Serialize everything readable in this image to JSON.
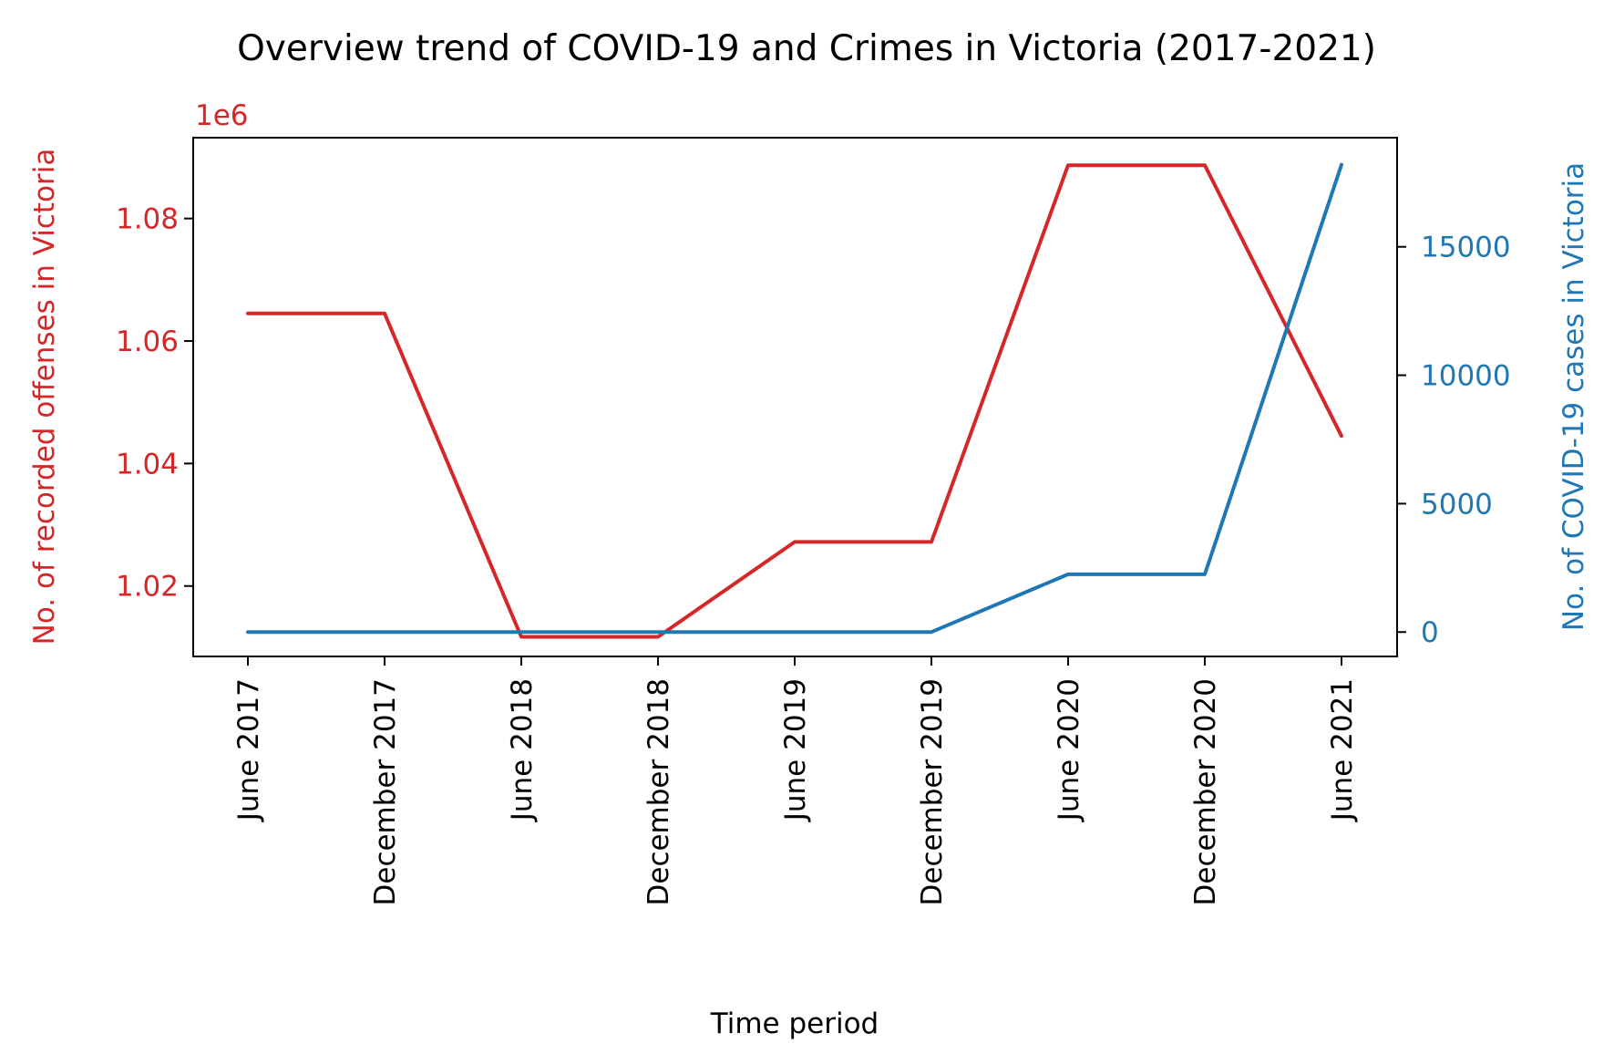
{
  "chart_data": {
    "type": "line",
    "title": "Overview trend of COVID-19 and Crimes in Victoria (2017-2021)",
    "xlabel": "Time period",
    "categories": [
      "June 2017",
      "December 2017",
      "June 2018",
      "December 2018",
      "June 2019",
      "December 2019",
      "June 2020",
      "December 2020",
      "June 2021"
    ],
    "left_axis": {
      "label": "No. of recorded offenses in Victoria",
      "offset_text": "1e6",
      "color": "#d62728",
      "ylim": [
        1.0085,
        1.0932
      ],
      "ticks": [
        1.02,
        1.04,
        1.06,
        1.08
      ],
      "tick_labels": [
        "1.02",
        "1.04",
        "1.06",
        "1.08"
      ]
    },
    "right_axis": {
      "label": "No. of COVID-19 cases in Victoria",
      "color": "#1f77b4",
      "ylim": [
        -950,
        19250
      ],
      "ticks": [
        0,
        5000,
        10000,
        15000
      ],
      "tick_labels": [
        "0",
        "5000",
        "10000",
        "15000"
      ]
    },
    "series": [
      {
        "axis": "left",
        "color": "#d62728",
        "values": [
          1.0645,
          1.0645,
          1.0117,
          1.0117,
          1.0272,
          1.0272,
          1.0887,
          1.0887,
          1.0445
        ]
      },
      {
        "axis": "right",
        "color": "#1f77b4",
        "values": [
          0,
          0,
          0,
          0,
          0,
          0,
          2250,
          2250,
          18200
        ]
      }
    ]
  }
}
